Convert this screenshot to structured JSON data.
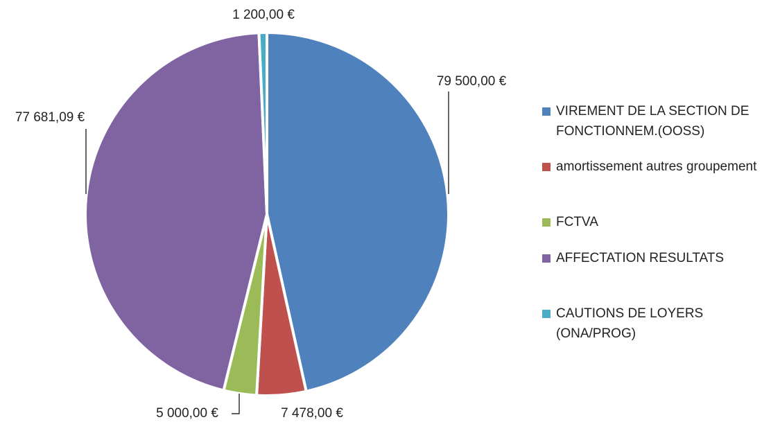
{
  "chart_data": {
    "type": "pie",
    "categories": [
      "VIREMENT DE LA SECTION DE FONCTIONNEM.(OOSS)",
      "amortissement autres groupement",
      "FCTVA",
      "AFFECTATION RESULTATS",
      "CAUTIONS DE LOYERS (ONA/PROG)"
    ],
    "values": [
      79500,
      7478,
      5000,
      77681.09,
      1200
    ],
    "value_labels": [
      "79 500,00 €",
      "7 478,00 €",
      "5 000,00 €",
      "77 681,09 €",
      "1 200,00 €"
    ],
    "colors": [
      "#4f81bd",
      "#c0504d",
      "#9bbb59",
      "#8064a2",
      "#4bacc6"
    ],
    "legend": "right"
  }
}
